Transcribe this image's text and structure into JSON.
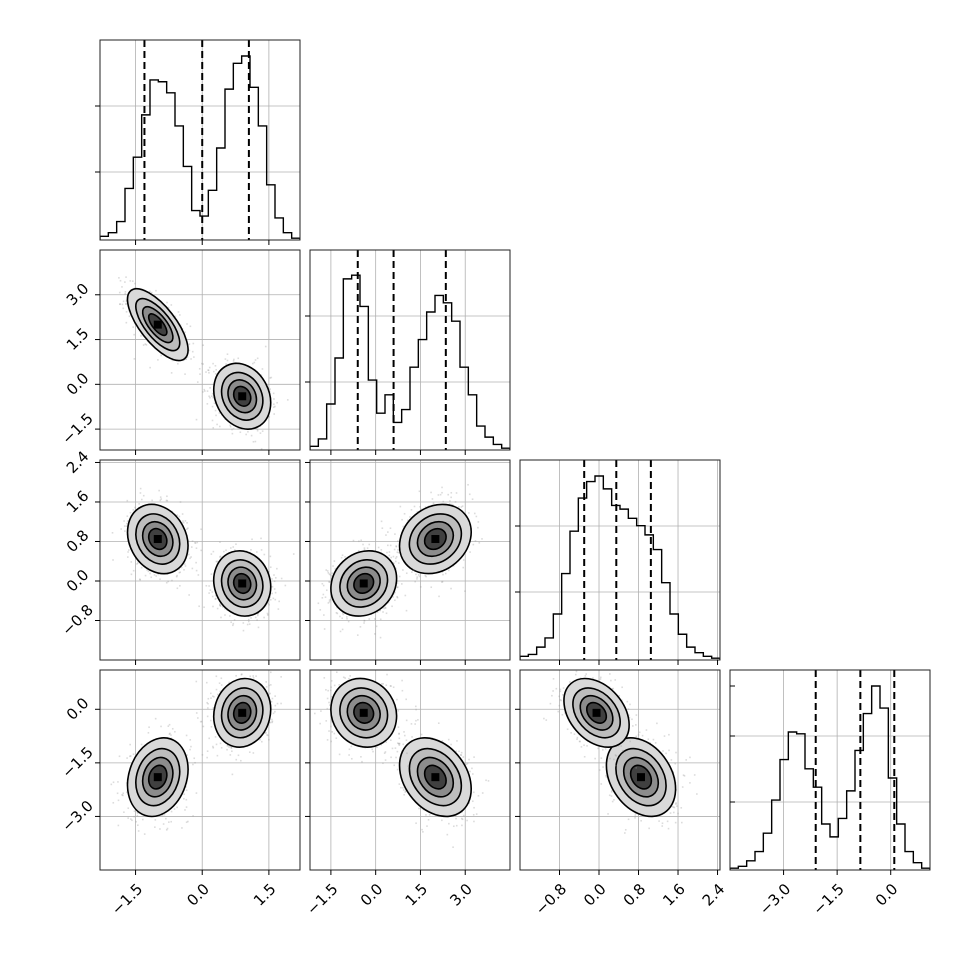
{
  "chart_data": {
    "type": "corner",
    "parameters": [
      "",
      "",
      "",
      ""
    ],
    "grid": true,
    "axes": [
      {
        "range": [
          -2.3,
          2.2
        ],
        "ticks": [
          -1.5,
          0.0,
          1.5
        ],
        "tick_labels": [
          "−1.5",
          "0.0",
          "1.5"
        ]
      },
      {
        "range": [
          -2.2,
          4.5
        ],
        "ticks": [
          -1.5,
          0.0,
          1.5,
          3.0
        ],
        "tick_labels": [
          "−1.5",
          "0.0",
          "1.5",
          "3.0"
        ]
      },
      {
        "range": [
          -1.6,
          2.45
        ],
        "ticks": [
          -0.8,
          0.0,
          0.8,
          1.6,
          2.4
        ],
        "tick_labels": [
          "−0.8",
          "0.0",
          "0.8",
          "1.6",
          "2.4"
        ]
      },
      {
        "range": [
          -4.5,
          1.1
        ],
        "ticks": [
          -3.0,
          -1.5,
          0.0
        ],
        "tick_labels": [
          "−3.0",
          "−1.5",
          "0.0"
        ]
      }
    ],
    "quantiles": [
      [
        -1.3,
        0.0,
        1.05
      ],
      [
        -0.6,
        0.6,
        2.35
      ],
      [
        -0.3,
        0.35,
        1.05
      ],
      [
        -2.1,
        -0.85,
        0.1
      ]
    ],
    "histograms": [
      [
        0.02,
        0.04,
        0.1,
        0.28,
        0.45,
        0.68,
        0.87,
        0.86,
        0.8,
        0.62,
        0.4,
        0.16,
        0.13,
        0.27,
        0.5,
        0.82,
        0.96,
        1.0,
        0.83,
        0.62,
        0.3,
        0.12,
        0.04,
        0.01
      ],
      [
        0.02,
        0.06,
        0.25,
        0.5,
        0.93,
        0.95,
        0.78,
        0.38,
        0.2,
        0.3,
        0.15,
        0.22,
        0.45,
        0.6,
        0.75,
        0.84,
        0.8,
        0.7,
        0.45,
        0.3,
        0.13,
        0.07,
        0.03,
        0.01
      ],
      [
        0.02,
        0.03,
        0.07,
        0.12,
        0.25,
        0.47,
        0.7,
        0.88,
        0.97,
        1.0,
        0.93,
        0.84,
        0.82,
        0.77,
        0.73,
        0.68,
        0.6,
        0.42,
        0.25,
        0.14,
        0.07,
        0.04,
        0.02,
        0.01
      ],
      [
        0.01,
        0.02,
        0.05,
        0.1,
        0.2,
        0.38,
        0.6,
        0.75,
        0.74,
        0.55,
        0.45,
        0.25,
        0.18,
        0.28,
        0.43,
        0.65,
        0.85,
        1.0,
        0.88,
        0.5,
        0.25,
        0.1,
        0.04,
        0.01
      ]
    ],
    "modes": [
      {
        "center": [
          -1.0,
          2.0,
          0.85,
          -1.9
        ],
        "sd": [
          0.34,
          0.6,
          0.35,
          0.55
        ],
        "corr": [
          [
            1.0,
            -0.7,
            -0.2,
            0.2
          ],
          [
            -0.7,
            1.0,
            0.2,
            -0.3
          ],
          [
            -0.2,
            0.2,
            1.0,
            -0.3
          ],
          [
            0.2,
            -0.3,
            -0.3,
            1.0
          ]
        ]
      },
      {
        "center": [
          0.9,
          -0.4,
          -0.05,
          -0.1
        ],
        "sd": [
          0.32,
          0.55,
          0.33,
          0.48
        ],
        "corr": [
          [
            1.0,
            -0.2,
            -0.1,
            0.1
          ],
          [
            -0.2,
            1.0,
            0.15,
            -0.1
          ],
          [
            -0.1,
            0.15,
            1.0,
            -0.35
          ],
          [
            0.1,
            -0.1,
            -0.35,
            1.0
          ]
        ]
      }
    ],
    "contour_levels_sigma": [
      0.6,
      1.0,
      1.45,
      2.0
    ]
  }
}
